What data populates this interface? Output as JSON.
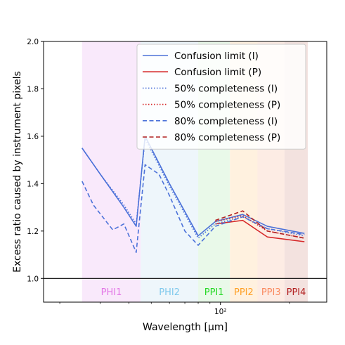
{
  "chart_data": {
    "type": "line",
    "xlabel": "Wavelength [μm]",
    "ylabel": "Excess ratio caused by instrument pixels",
    "xscale": "log",
    "xlim": [
      17,
      290
    ],
    "ylim": [
      0.9,
      2.0
    ],
    "yticks": [
      1.0,
      1.2,
      1.4,
      1.6,
      1.8,
      2.0
    ],
    "ytick_labels": [
      "1.0",
      "1.2",
      "1.4",
      "1.6",
      "1.8",
      "2.0"
    ],
    "xticks": [
      100
    ],
    "xtick_labels": [
      "10²"
    ],
    "reference_line": 1.0,
    "bands": [
      {
        "label": "PHI1",
        "range": [
          25,
          45
        ],
        "color": "#e377e6",
        "fill": "#f9e9fb"
      },
      {
        "label": "PHI2",
        "range": [
          45,
          80
        ],
        "color": "#7fc9ec",
        "fill": "#eef6fb"
      },
      {
        "label": "PPI1",
        "range": [
          80,
          110
        ],
        "color": "#26d926",
        "fill": "#e9f9e9"
      },
      {
        "label": "PPI2",
        "range": [
          110,
          145
        ],
        "color": "#ffa024",
        "fill": "#fff1df"
      },
      {
        "label": "PPI3",
        "range": [
          145,
          190
        ],
        "color": "#fa8a60",
        "fill": "#fdece4"
      },
      {
        "label": "PPI4",
        "range": [
          190,
          240
        ],
        "color": "#b21f1f",
        "fill": "#f3e2df"
      }
    ],
    "series": [
      {
        "name": "Confusion limit (I)",
        "color": "#4c72d9",
        "style": "solid",
        "x": [
          25,
          30,
          38,
          43,
          47,
          60,
          80,
          95,
          125,
          160,
          232
        ],
        "y": [
          1.55,
          1.44,
          1.3,
          1.22,
          1.6,
          1.4,
          1.18,
          1.24,
          1.27,
          1.22,
          1.19
        ]
      },
      {
        "name": "Confusion limit (P)",
        "color": "#d62728",
        "style": "solid",
        "x": [
          95,
          125,
          160,
          232
        ],
        "y": [
          1.23,
          1.245,
          1.175,
          1.155
        ]
      },
      {
        "name": "50% completeness (I)",
        "color": "#4c72d9",
        "style": "dotted",
        "x": [
          25,
          30,
          38,
          43,
          47,
          60,
          80,
          95,
          125,
          160,
          232
        ],
        "y": [
          1.55,
          1.44,
          1.31,
          1.23,
          1.59,
          1.39,
          1.17,
          1.23,
          1.26,
          1.21,
          1.18
        ]
      },
      {
        "name": "50% completeness (P)",
        "color": "#d62728",
        "style": "dotted",
        "x": [
          95,
          125,
          160,
          232
        ],
        "y": [
          1.24,
          1.265,
          1.2,
          1.17
        ]
      },
      {
        "name": "80% completeness (I)",
        "color": "#4c72d9",
        "style": "dashed",
        "x": [
          25,
          28,
          34,
          38,
          43,
          47,
          54,
          60,
          70,
          80,
          95,
          125,
          160,
          232
        ],
        "y": [
          1.41,
          1.31,
          1.205,
          1.23,
          1.11,
          1.48,
          1.44,
          1.35,
          1.2,
          1.14,
          1.22,
          1.26,
          1.21,
          1.185
        ]
      },
      {
        "name": "80% completeness (P)",
        "color": "#b22222",
        "style": "dashed",
        "x": [
          95,
          125,
          160,
          232
        ],
        "y": [
          1.245,
          1.285,
          1.2,
          1.17
        ]
      }
    ],
    "legend_position": "top-right"
  }
}
